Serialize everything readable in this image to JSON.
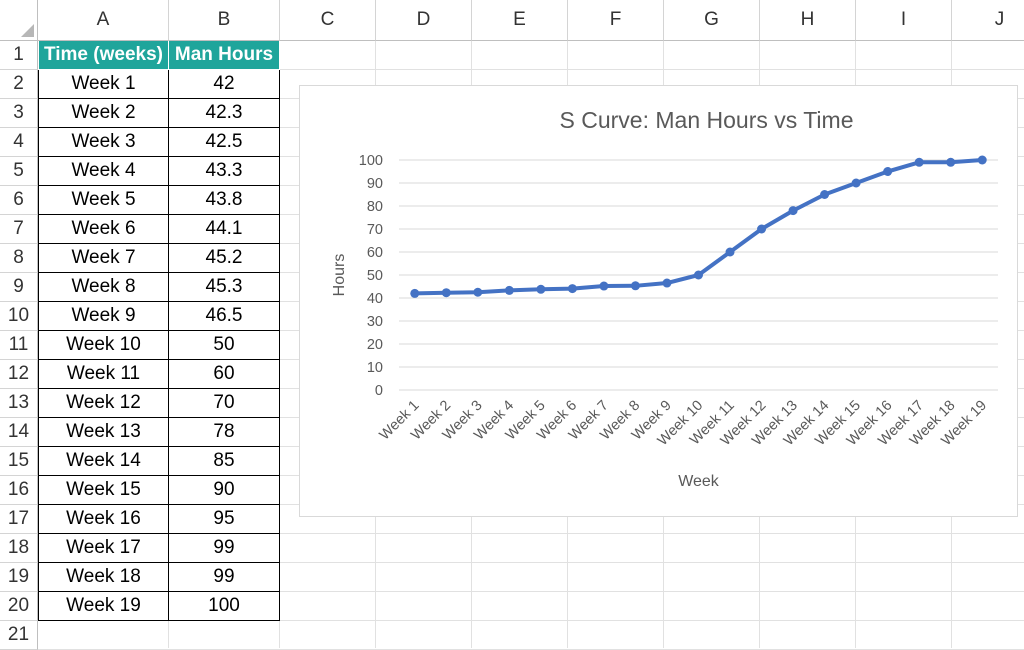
{
  "columns": [
    "A",
    "B",
    "C",
    "D",
    "E",
    "F",
    "G",
    "H",
    "I",
    "J"
  ],
  "row_numbers": [
    "1",
    "2",
    "3",
    "4",
    "5",
    "6",
    "7",
    "8",
    "9",
    "10",
    "11",
    "12",
    "13",
    "14",
    "15",
    "16",
    "17",
    "18",
    "19",
    "20",
    "21"
  ],
  "table": {
    "headers": [
      "Time (weeks)",
      "Man Hours"
    ],
    "rows": [
      [
        "Week 1",
        "42"
      ],
      [
        "Week 2",
        "42.3"
      ],
      [
        "Week 3",
        "42.5"
      ],
      [
        "Week 4",
        "43.3"
      ],
      [
        "Week 5",
        "43.8"
      ],
      [
        "Week 6",
        "44.1"
      ],
      [
        "Week 7",
        "45.2"
      ],
      [
        "Week 8",
        "45.3"
      ],
      [
        "Week 9",
        "46.5"
      ],
      [
        "Week 10",
        "50"
      ],
      [
        "Week 11",
        "60"
      ],
      [
        "Week 12",
        "70"
      ],
      [
        "Week 13",
        "78"
      ],
      [
        "Week 14",
        "85"
      ],
      [
        "Week 15",
        "90"
      ],
      [
        "Week 16",
        "95"
      ],
      [
        "Week 17",
        "99"
      ],
      [
        "Week 18",
        "99"
      ],
      [
        "Week 19",
        "100"
      ]
    ]
  },
  "colors": {
    "header_fill": "#1fa59b",
    "series_line": "#4472c4",
    "gridline": "#d9d9d9"
  },
  "chart_data": {
    "type": "line",
    "title": "S Curve: Man Hours vs Time",
    "xlabel": "Week",
    "ylabel": "Hours",
    "categories": [
      "Week 1",
      "Week 2",
      "Week 3",
      "Week 4",
      "Week 5",
      "Week 6",
      "Week 7",
      "Week 8",
      "Week 9",
      "Week 10",
      "Week 11",
      "Week 12",
      "Week 13",
      "Week 14",
      "Week 15",
      "Week 16",
      "Week 17",
      "Week 18",
      "Week 19"
    ],
    "series": [
      {
        "values": [
          42,
          42.3,
          42.5,
          43.3,
          43.8,
          44.1,
          45.2,
          45.3,
          46.5,
          50,
          60,
          70,
          78,
          85,
          90,
          95,
          99,
          99,
          100
        ]
      }
    ],
    "ylim": [
      0,
      100
    ],
    "yticks": [
      "0",
      "10",
      "20",
      "30",
      "40",
      "50",
      "60",
      "70",
      "80",
      "90",
      "100"
    ],
    "grid": true,
    "markers": true,
    "legend": "none"
  }
}
